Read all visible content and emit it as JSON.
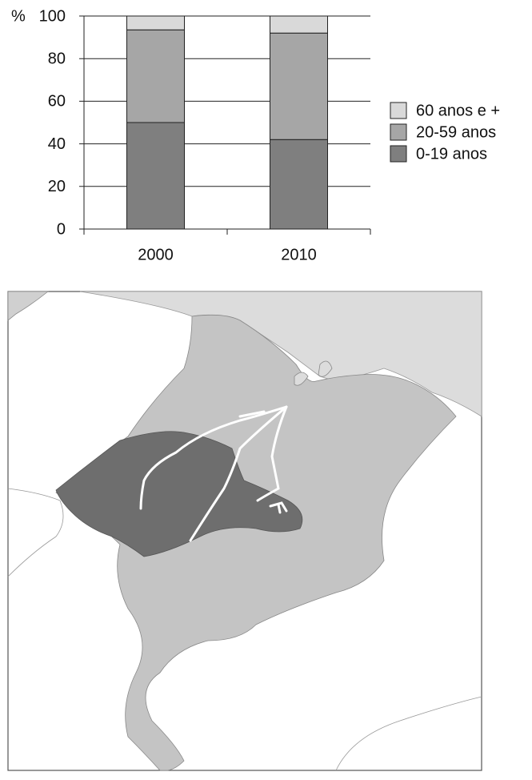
{
  "chart_data": {
    "type": "stacked_bar",
    "y_label": "%",
    "categories": [
      "2000",
      "2010"
    ],
    "series": [
      {
        "name": "0-19 anos",
        "color": "#7f7f7f",
        "values": [
          50,
          42
        ]
      },
      {
        "name": "20-59 anos",
        "color": "#a6a6a6",
        "values": [
          43.5,
          50
        ]
      },
      {
        "name": "60 anos e +",
        "color": "#d9d9d9",
        "values": [
          6.5,
          8
        ]
      }
    ],
    "ylim": [
      0,
      100
    ],
    "yticks": [
      0,
      20,
      40,
      60,
      80,
      100
    ],
    "grid": true
  }
}
